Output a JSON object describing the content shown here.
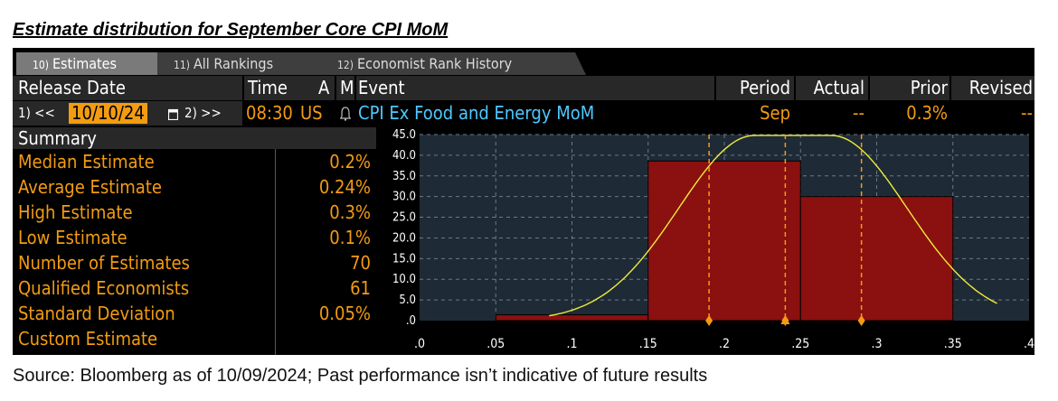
{
  "page_title": "Estimate distribution for September Core CPI MoM",
  "footer_text": "Source: Bloomberg as of 10/09/2024; Past performance isn’t indicative of future results",
  "colors": {
    "orange": "#f39c12",
    "cyan": "#4ec9ff",
    "bar": "#8b1010",
    "curve": "#f0ec3a",
    "marker": "#f39c12"
  },
  "tabs": [
    {
      "num": "10)",
      "label": "Estimates"
    },
    {
      "num": "11)",
      "label": "All Rankings"
    },
    {
      "num": "12)",
      "label": "Economist Rank History"
    }
  ],
  "header": {
    "release_date": "Release Date",
    "time": "Time",
    "a": "A",
    "m": "M",
    "event": "Event",
    "period": "Period",
    "actual": "Actual",
    "prior": "Prior",
    "revised": "Revised"
  },
  "row": {
    "prev_btn": "1) <<",
    "date": "10/10/24",
    "next_btn": "2) >>",
    "time": "08:30",
    "country": "US",
    "event": "CPI Ex Food and Energy MoM",
    "period": "Sep",
    "actual": "--",
    "prior": "0.3%",
    "revised": "--"
  },
  "summary": {
    "title": "Summary",
    "items": [
      {
        "label": "Median Estimate",
        "value": "0.2%"
      },
      {
        "label": "Average Estimate",
        "value": "0.24%"
      },
      {
        "label": "High Estimate",
        "value": "0.3%"
      },
      {
        "label": "Low Estimate",
        "value": "0.1%"
      },
      {
        "label": "Number of Estimates",
        "value": "70"
      },
      {
        "label": "Qualified Economists",
        "value": "61"
      },
      {
        "label": "Standard Deviation",
        "value": "0.05%"
      },
      {
        "label": "Custom Estimate",
        "value": ""
      }
    ]
  },
  "chart_data": {
    "type": "bar",
    "title": "",
    "xlabel": "",
    "ylabel": "",
    "bins": [
      {
        "x0": 0.05,
        "x1": 0.15,
        "value": 1.4
      },
      {
        "x0": 0.15,
        "x1": 0.25,
        "value": 38.6
      },
      {
        "x0": 0.25,
        "x1": 0.35,
        "value": 30.0
      }
    ],
    "curve": {
      "mean": 0.24,
      "sd": 0.05,
      "peak": 44.8,
      "x_from": 0.085,
      "x_to": 0.38,
      "plateau_from": 0.22,
      "plateau_to": 0.27
    },
    "markers_x": [
      0.19,
      0.24,
      0.29
    ],
    "mean_line_x": 0.24,
    "xlim": [
      0,
      0.4
    ],
    "ylim": [
      0,
      45
    ],
    "x_ticks": [
      ".0",
      ".05",
      ".1",
      ".15",
      ".2",
      ".25",
      ".3",
      ".35",
      ".4"
    ],
    "y_ticks": [
      ".0",
      "5.0",
      "10.0",
      "15.0",
      "20.0",
      "25.0",
      "30.0",
      "35.0",
      "40.0",
      "45.0"
    ],
    "grid": true
  }
}
